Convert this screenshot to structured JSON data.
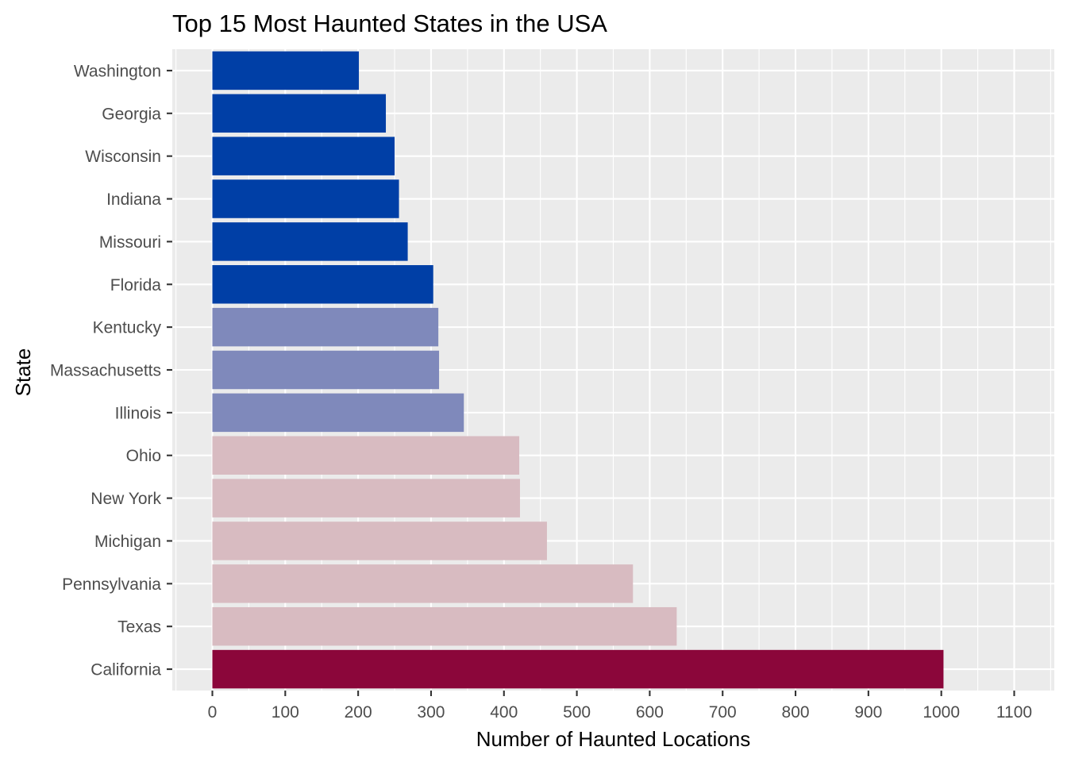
{
  "chart_data": {
    "type": "bar",
    "orientation": "horizontal",
    "title": "Top 15 Most Haunted States in the USA",
    "xlabel": "Number of Haunted Locations",
    "ylabel": "State",
    "xlim": [
      -55,
      1155
    ],
    "x_ticks": [
      0,
      100,
      200,
      300,
      400,
      500,
      600,
      700,
      800,
      900,
      1000,
      1100
    ],
    "grid": true,
    "legend": "none",
    "panel_background": "#ebebeb",
    "gridline_color": "#ffffff",
    "categories": [
      "Washington",
      "Georgia",
      "Wisconsin",
      "Indiana",
      "Missouri",
      "Florida",
      "Kentucky",
      "Massachusetts",
      "Illinois",
      "Ohio",
      "New York",
      "Michigan",
      "Pennsylvania",
      "Texas",
      "California"
    ],
    "values": [
      201,
      238,
      250,
      256,
      268,
      303,
      310,
      311,
      345,
      421,
      422,
      459,
      577,
      637,
      1003
    ],
    "colors": [
      "#003fa6",
      "#003fa6",
      "#003fa6",
      "#003fa6",
      "#003fa6",
      "#003fa6",
      "#7f89bb",
      "#7f89bb",
      "#7f89bb",
      "#d8bbc1",
      "#d8bbc1",
      "#d8bbc1",
      "#d8bbc1",
      "#d8bbc1",
      "#8b063a"
    ]
  }
}
